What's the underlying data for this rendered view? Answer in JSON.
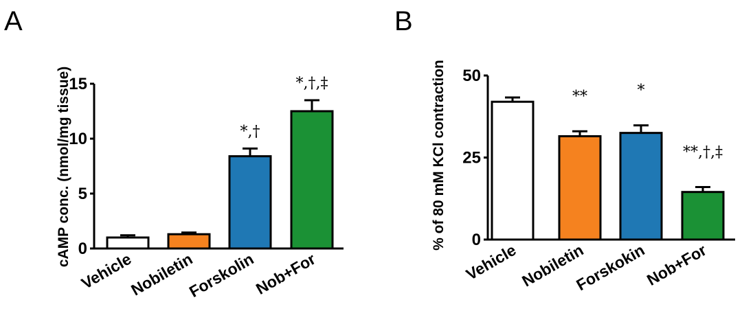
{
  "chart_data": [
    {
      "panel": "A",
      "type": "bar",
      "categories": [
        "Vehicle",
        "Nobiletin",
        "Forskolin",
        "Nob+For"
      ],
      "values": [
        1.0,
        1.3,
        8.4,
        12.5
      ],
      "errors": [
        0.2,
        0.15,
        0.7,
        1.0
      ],
      "annotations": [
        "",
        "",
        "*,†",
        "*,†,‡"
      ],
      "colors": [
        "#ffffff",
        "#f5821f",
        "#1f78b4",
        "#1b9135"
      ],
      "ylabel": "cAMP conc. (nmol/mg tissue)",
      "ylim": [
        0,
        15
      ],
      "yticks": [
        0,
        5,
        10,
        15
      ],
      "xlabel": "",
      "grid": false
    },
    {
      "panel": "B",
      "type": "bar",
      "categories": [
        "Vehicle",
        "Nobiletin",
        "Forskokin",
        "Nob+For"
      ],
      "values": [
        42,
        31.5,
        32.5,
        14.5
      ],
      "errors": [
        1.3,
        1.5,
        2.3,
        1.5
      ],
      "annotations": [
        "",
        "**",
        "*",
        "**,†,‡"
      ],
      "colors": [
        "#ffffff",
        "#f5821f",
        "#1f78b4",
        "#1b9135"
      ],
      "ylabel": "% of 80 mM KCl contraction",
      "ylim": [
        0,
        50
      ],
      "yticks": [
        0,
        25,
        50
      ],
      "xlabel": "",
      "grid": false
    }
  ]
}
